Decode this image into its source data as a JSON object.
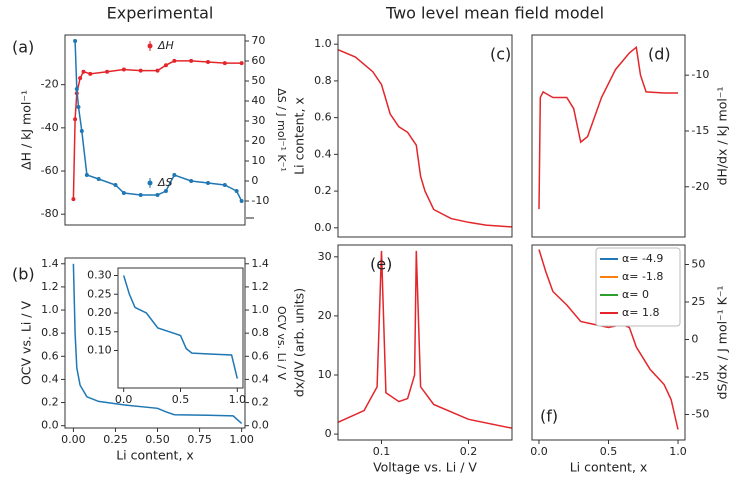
{
  "chart_data": [
    {
      "type": "line",
      "title": "Experimental",
      "panel_label": "(a)",
      "markers": true,
      "xlim": [
        -0.05,
        1.02
      ],
      "ylim": [
        -85,
        3
      ],
      "yticks": [
        -80,
        -60,
        -40,
        -20
      ],
      "ylabel": "ΔH / kJ mol⁻¹",
      "y2lim": [
        -22,
        73
      ],
      "y2ticks": [
        -10,
        0,
        10,
        20,
        30,
        40,
        50,
        60,
        70
      ],
      "y2label": "ΔS / J mol⁻¹ K⁻¹",
      "series": [
        {
          "name": "ΔH",
          "color": "#e3262b",
          "x": [
            0.0,
            0.01,
            0.02,
            0.04,
            0.06,
            0.1,
            0.2,
            0.3,
            0.4,
            0.5,
            0.55,
            0.6,
            0.7,
            0.8,
            0.9,
            1.0
          ],
          "values": [
            -73,
            -36,
            -24,
            -17,
            -14,
            -15,
            -14,
            -13,
            -13.5,
            -13.5,
            -11,
            -9,
            -9,
            -9.5,
            -10,
            -10
          ]
        },
        {
          "name": "ΔS",
          "color": "#1f77b4",
          "axis": "y2",
          "x": [
            0.01,
            0.02,
            0.03,
            0.05,
            0.08,
            0.15,
            0.25,
            0.3,
            0.4,
            0.5,
            0.55,
            0.6,
            0.7,
            0.8,
            0.9,
            0.97,
            1.0
          ],
          "values": [
            70,
            46,
            37,
            25,
            3,
            1,
            -2,
            -6,
            -7,
            -7,
            -5,
            3,
            0,
            -1,
            -2,
            -5,
            -10
          ]
        }
      ]
    },
    {
      "type": "line",
      "panel_label": "(b)",
      "xlim": [
        -0.05,
        1.02
      ],
      "xlabel": "Li content, x",
      "xticks": [
        {
          "value": 0,
          "label": "0.00"
        },
        0.25,
        {
          "value": 0.5,
          "label": "0.50"
        },
        0.75,
        {
          "value": 1,
          "label": "1.00"
        }
      ],
      "ylim": [
        -0.02,
        1.45
      ],
      "yticks": [
        {
          "value": 0,
          "label": "0.0"
        },
        0.2,
        0.4,
        0.6,
        0.8,
        {
          "value": 1,
          "label": "1.0"
        },
        1.2,
        1.4
      ],
      "ylabel": "OCV vs. Li / V",
      "y2lim": [
        -0.02,
        1.45
      ],
      "y2ticks": [
        {
          "value": 0,
          "label": "0.0"
        },
        0.2,
        0.4,
        0.6,
        0.8,
        {
          "value": 1,
          "label": "1.0"
        },
        1.2,
        1.4
      ],
      "y2label": "OCV vs. Li / V",
      "series": [
        {
          "color": "#1f77b4",
          "x": [
            0.0,
            0.01,
            0.02,
            0.04,
            0.08,
            0.15,
            0.3,
            0.5,
            0.55,
            0.6,
            0.8,
            0.95,
            1.0
          ],
          "values": [
            1.4,
            0.8,
            0.5,
            0.35,
            0.25,
            0.21,
            0.18,
            0.15,
            0.12,
            0.095,
            0.09,
            0.085,
            0.02
          ]
        }
      ]
    },
    {
      "type": "line",
      "xlim": [
        -0.05,
        1.05
      ],
      "xticks": [
        {
          "value": 0,
          "label": "0.0"
        },
        0.5,
        {
          "value": 1,
          "label": "1.0"
        }
      ],
      "ylim": [
        0.0,
        0.32
      ],
      "yticks": [
        {
          "value": 0.1,
          "label": "0.10"
        },
        0.15,
        {
          "value": 0.2,
          "label": "0.20"
        },
        0.25,
        {
          "value": 0.3,
          "label": "0.30"
        }
      ],
      "series": [
        {
          "color": "#1f77b4",
          "x": [
            0.0,
            0.05,
            0.1,
            0.2,
            0.3,
            0.45,
            0.5,
            0.55,
            0.6,
            0.8,
            0.95,
            1.0
          ],
          "values": [
            0.3,
            0.25,
            0.215,
            0.2,
            0.16,
            0.145,
            0.14,
            0.105,
            0.093,
            0.09,
            0.088,
            0.025
          ]
        }
      ]
    },
    {
      "type": "line",
      "title": "Two level mean field model",
      "panel_label": "(c)",
      "xlim": [
        0.05,
        0.25
      ],
      "ylim": [
        -0.05,
        1.05
      ],
      "yticks": [
        {
          "value": 0,
          "label": "0.0"
        },
        0.2,
        0.4,
        0.6,
        0.8,
        {
          "value": 1,
          "label": "1.0"
        }
      ],
      "ylabel": "Li content, x",
      "series": [
        {
          "color": "#e3262b",
          "x": [
            0.05,
            0.07,
            0.09,
            0.1,
            0.11,
            0.12,
            0.13,
            0.14,
            0.145,
            0.15,
            0.16,
            0.18,
            0.2,
            0.22,
            0.25
          ],
          "values": [
            0.97,
            0.93,
            0.85,
            0.78,
            0.62,
            0.55,
            0.52,
            0.45,
            0.28,
            0.2,
            0.1,
            0.05,
            0.03,
            0.015,
            0.005
          ]
        }
      ]
    },
    {
      "type": "line",
      "panel_label": "(d)",
      "yaxis_side": "right",
      "xlim": [
        -0.05,
        1.05
      ],
      "ylim": [
        -24.5,
        -6.4
      ],
      "yticks": [
        -20,
        -15,
        -10
      ],
      "ylabel": "dH/dx / kJ mol⁻¹",
      "series": [
        {
          "color": "#e3262b",
          "x": [
            0.0,
            0.01,
            0.03,
            0.1,
            0.2,
            0.25,
            0.3,
            0.35,
            0.45,
            0.55,
            0.65,
            0.7,
            0.73,
            0.77,
            0.9,
            1.0
          ],
          "values": [
            -22,
            -12,
            -11.5,
            -12,
            -12,
            -13,
            -16,
            -15.5,
            -12,
            -9.5,
            -8,
            -7.5,
            -10,
            -11.5,
            -11.6,
            -11.6
          ]
        }
      ]
    },
    {
      "type": "line",
      "panel_label": "(e)",
      "xlim": [
        0.05,
        0.25
      ],
      "xticks": [
        0.1,
        0.2
      ],
      "xlabel": "Voltage vs. Li / V",
      "ylim": [
        -1,
        32
      ],
      "yticks": [
        0,
        10,
        20,
        30
      ],
      "ylabel": "dx/dV (arb. units)",
      "series": [
        {
          "color": "#e3262b",
          "x": [
            0.05,
            0.08,
            0.095,
            0.1,
            0.105,
            0.12,
            0.13,
            0.138,
            0.14,
            0.145,
            0.16,
            0.2,
            0.25
          ],
          "values": [
            2,
            4,
            8,
            31,
            7,
            5.5,
            6,
            10,
            31,
            8,
            5,
            2.5,
            1
          ]
        }
      ]
    },
    {
      "type": "line",
      "panel_label": "(f)",
      "yaxis_side": "right",
      "xlim": [
        -0.05,
        1.05
      ],
      "xticks": [
        {
          "value": 0,
          "label": "0.0"
        },
        0.5,
        {
          "value": 1,
          "label": "1.0"
        }
      ],
      "xlabel": "Li content, x",
      "ylim": [
        -67,
        63
      ],
      "yticks": [
        -50,
        -25,
        0,
        25,
        50
      ],
      "ylabel": "dS/dx / J mol⁻¹ K⁻¹",
      "legend": [
        {
          "name": "α= -4.9",
          "color": "#1f77b4"
        },
        {
          "name": "α= -1.8",
          "color": "#ff7f0e"
        },
        {
          "name": "α= 0",
          "color": "#2ca02c"
        },
        {
          "name": "α= 1.8",
          "color": "#e3262b"
        }
      ],
      "series": [
        {
          "color": "#e3262b",
          "x": [
            0.0,
            0.05,
            0.1,
            0.2,
            0.3,
            0.4,
            0.5,
            0.6,
            0.65,
            0.7,
            0.8,
            0.9,
            0.95,
            1.0
          ],
          "values": [
            60,
            45,
            32,
            23,
            12,
            10,
            8,
            10,
            8,
            -5,
            -20,
            -30,
            -40,
            -60
          ]
        }
      ]
    }
  ]
}
